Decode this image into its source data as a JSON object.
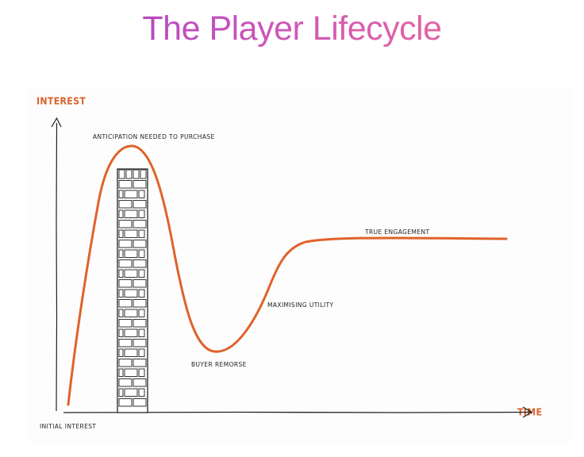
{
  "title": "The Player Lifecycle",
  "colors": {
    "title_gradient_start": "#a23dbb",
    "title_gradient_end": "#e8648a",
    "curve": "#e0622a",
    "axis_label": "#d9622c",
    "axis_line": "#222222",
    "annotation_text": "#222222",
    "wall_stroke": "#333333",
    "wall_fill": "#ffffff"
  },
  "axes": {
    "y_label": "INTEREST",
    "x_label": "TIME"
  },
  "annotations": {
    "initial": "Initial interest",
    "peak": "Anticipation needed to purchase",
    "trough": "Buyer remorse",
    "recovery": "Maximising utility",
    "plateau": "True engagement"
  },
  "wall": {
    "label": "brick-wall barrier",
    "rows": 24
  },
  "chart_data": {
    "type": "line",
    "title": "The Player Lifecycle",
    "xlabel": "TIME",
    "ylabel": "INTEREST",
    "grid": false,
    "legend": "none",
    "description": "Hype-cycle style curve of player interest over time, with a brick wall (purchase barrier) at the peak.",
    "x": [
      0,
      5,
      10,
      15,
      20,
      25,
      30,
      35,
      40,
      45,
      50,
      55,
      60,
      70,
      80,
      90,
      100
    ],
    "values": [
      2,
      55,
      88,
      100,
      82,
      40,
      18,
      16,
      28,
      45,
      58,
      64,
      66,
      67,
      67.5,
      67.5,
      67.5
    ],
    "xlim": [
      0,
      100
    ],
    "ylim": [
      0,
      110
    ],
    "annotations": [
      {
        "x": 0,
        "y": 2,
        "text": "Initial interest"
      },
      {
        "x": 15,
        "y": 100,
        "text": "Anticipation needed to purchase"
      },
      {
        "x": 33,
        "y": 16,
        "text": "Buyer remorse"
      },
      {
        "x": 48,
        "y": 50,
        "text": "Maximising utility"
      },
      {
        "x": 75,
        "y": 67,
        "text": "True engagement"
      }
    ],
    "barrier": {
      "x_start": 11,
      "x_end": 17,
      "label": "brick wall"
    }
  }
}
